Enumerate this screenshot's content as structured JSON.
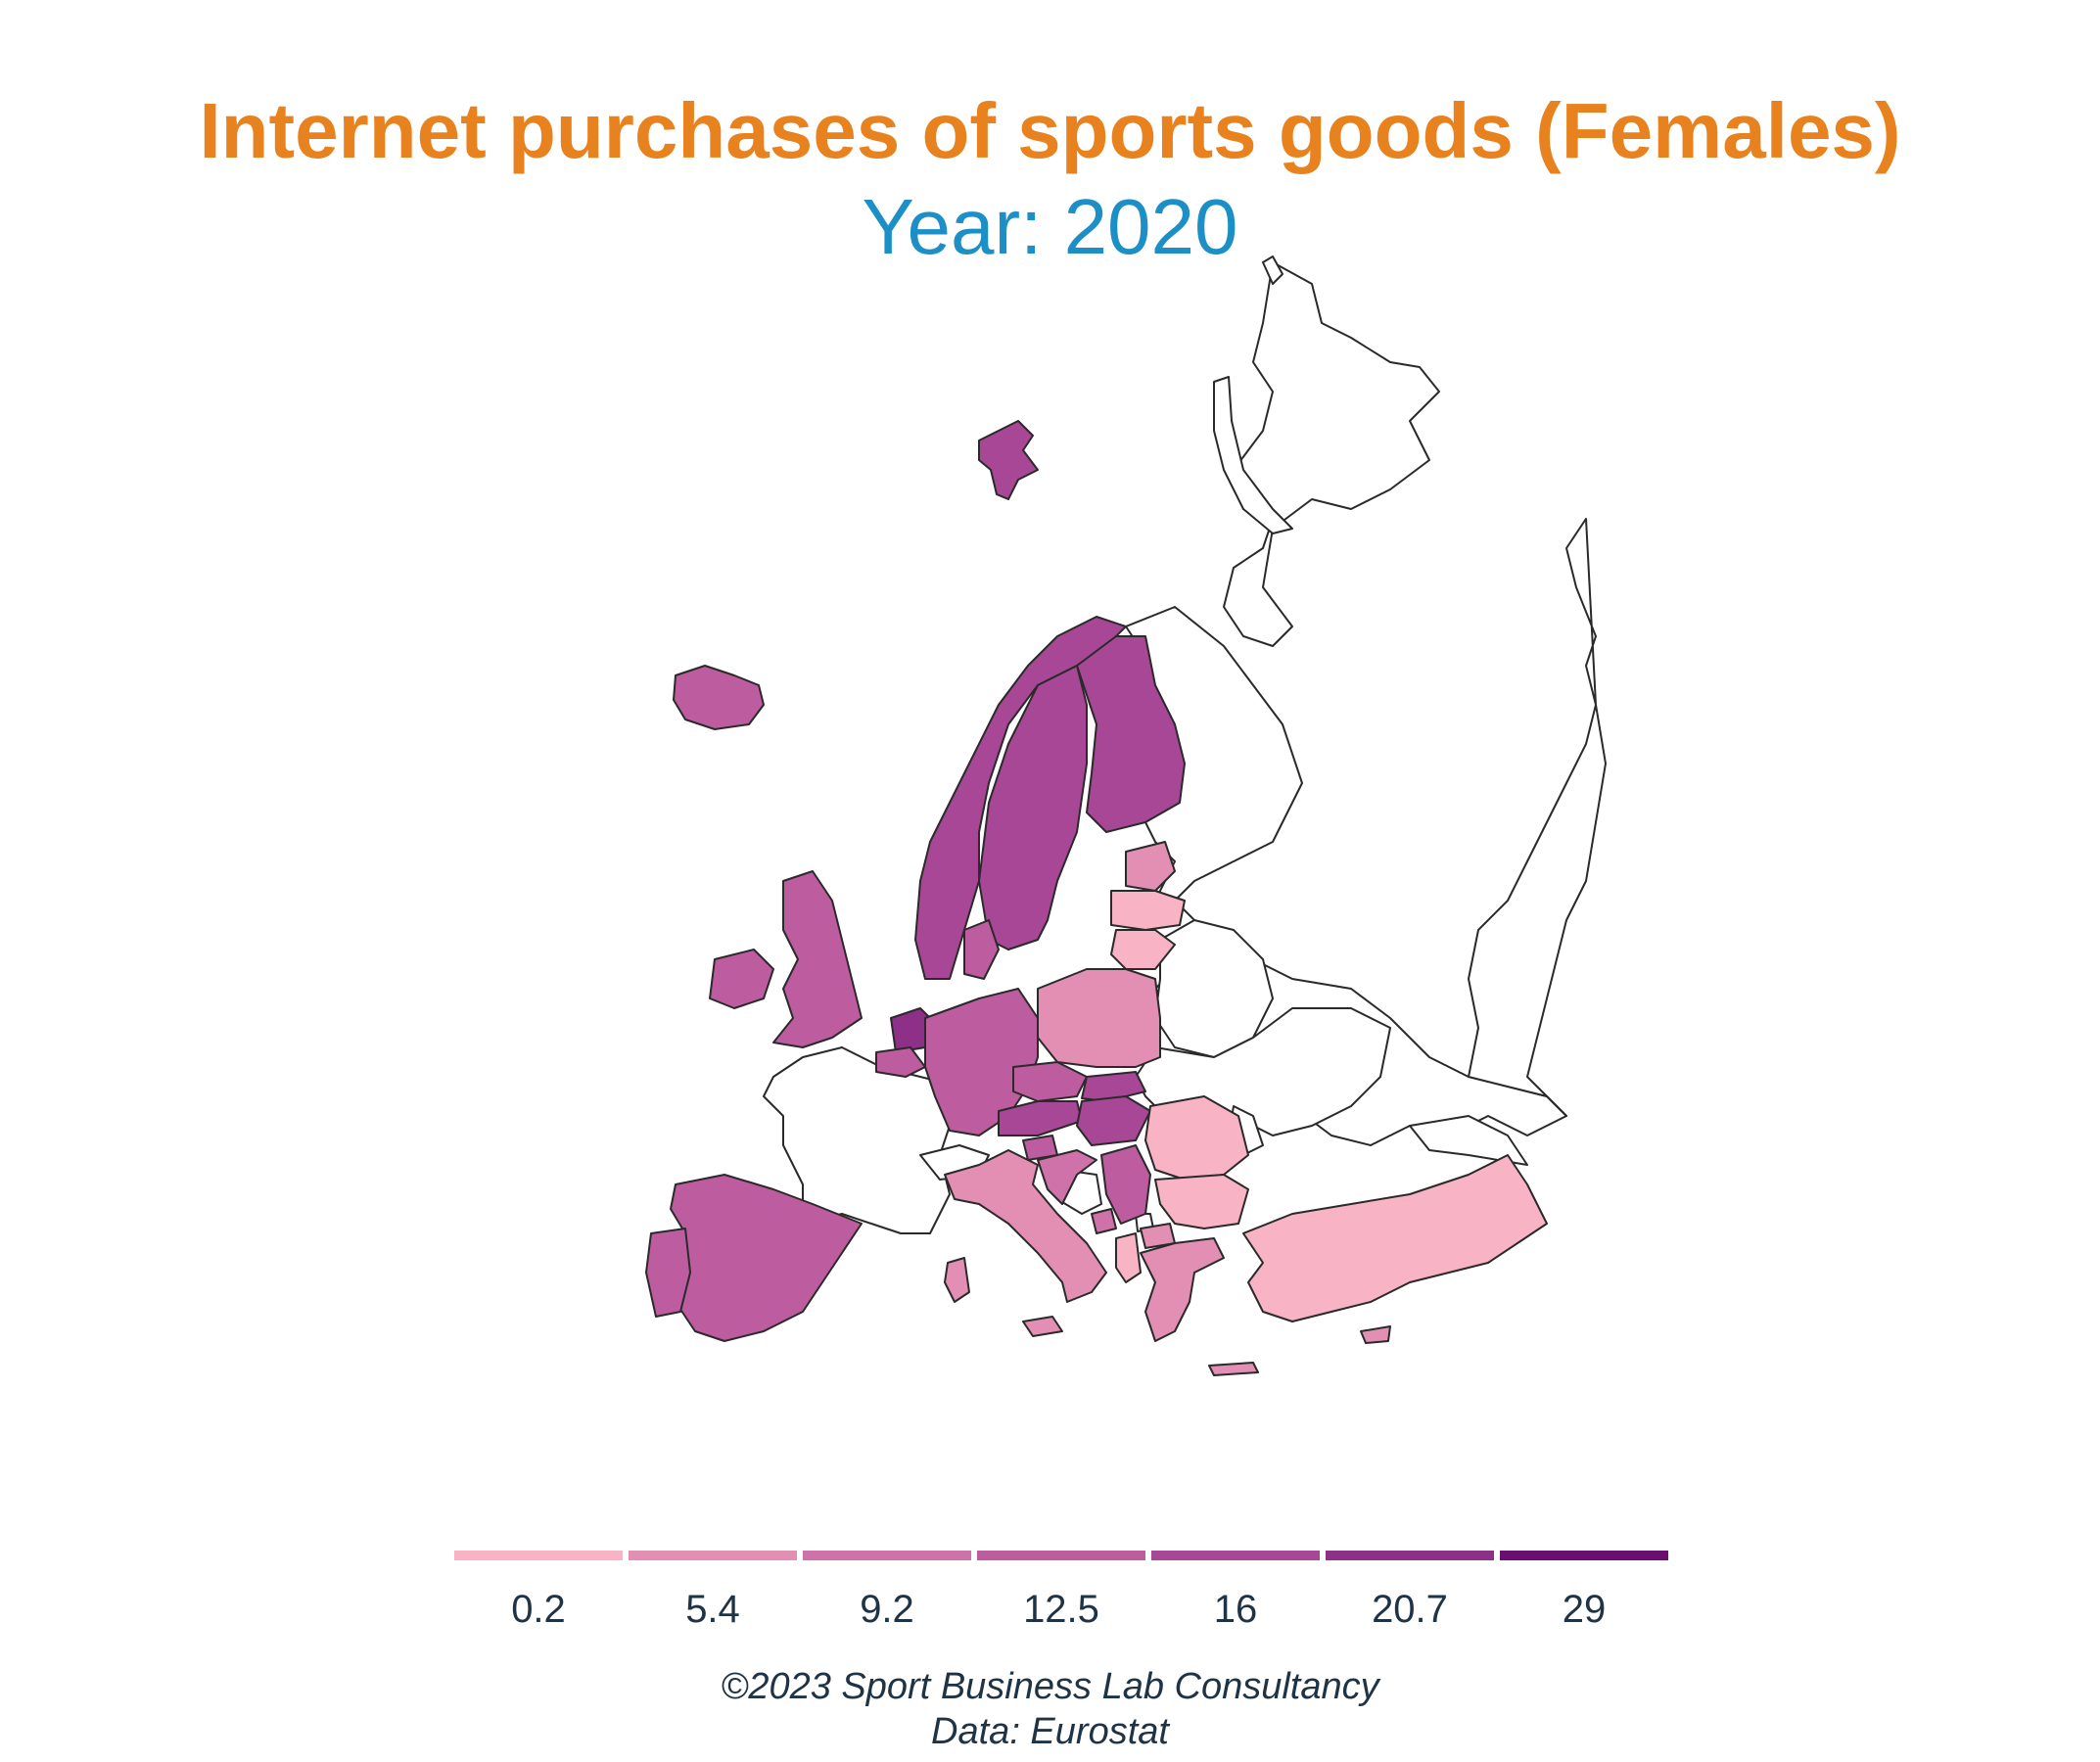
{
  "title": "Internet purchases of sports goods (Females)",
  "subtitle": "Year: 2020",
  "legend": {
    "items": [
      {
        "label": "0.2",
        "color": "#f8b3c4"
      },
      {
        "label": "5.4",
        "color": "#e38fb4"
      },
      {
        "label": "9.2",
        "color": "#d072aa"
      },
      {
        "label": "12.5",
        "color": "#be5ca0"
      },
      {
        "label": "16",
        "color": "#a84796"
      },
      {
        "label": "20.7",
        "color": "#8e2f88"
      },
      {
        "label": "29",
        "color": "#6a0f6f"
      }
    ]
  },
  "caption": {
    "line1": "©2023 Sport Business Lab Consultancy",
    "line2": "Data: Eurostat"
  },
  "map_colors": {
    "nodata": "#ffffff",
    "outline": "#2a2a2a"
  }
}
